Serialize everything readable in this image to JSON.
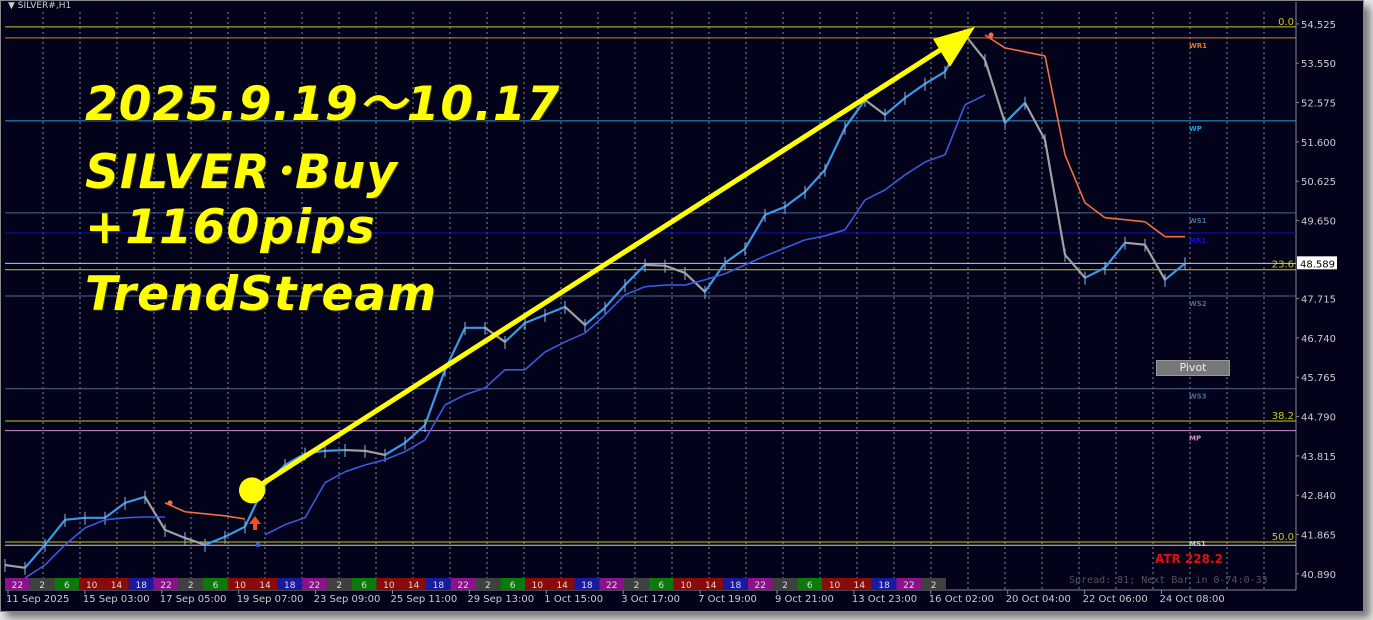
{
  "window": {
    "title": "SILVER#,H1"
  },
  "annotation": {
    "line1": "2025.9.19～10.17",
    "line2": "SILVER･Buy",
    "line3": "+1160pips",
    "line4": "TrendStream",
    "color": "#ffff00"
  },
  "pivot_button": "Pivot",
  "atr_label": "ATR 228.2",
  "spread_text": "Spread: 81; Next Bar in 0-74:0-33",
  "chart_data": {
    "type": "line",
    "ylim": [
      40.49,
      54.82
    ],
    "y_ticks": [
      "54.525",
      "53.550",
      "52.575",
      "51.600",
      "50.625",
      "49.650",
      "48.589",
      "47.715",
      "46.740",
      "45.765",
      "44.790",
      "43.815",
      "42.840",
      "41.865",
      "40.890"
    ],
    "x_ticks": [
      "11 Sep 2025",
      "15 Sep 03:00",
      "17 Sep 05:00",
      "19 Sep 07:00",
      "23 Sep 09:00",
      "25 Sep 11:00",
      "29 Sep 13:00",
      "1 Oct 15:00",
      "3 Oct 17:00",
      "7 Oct 19:00",
      "9 Oct 21:00",
      "13 Oct 23:00",
      "16 Oct 02:00",
      "20 Oct 04:00",
      "22 Oct 06:00",
      "24 Oct 08:00"
    ],
    "grid": true,
    "current_price": "48.589",
    "series": [
      {
        "role": "price",
        "color_up": "#3a9ae8",
        "color_down": "#a0a0a0",
        "values": [
          41.11,
          41.04,
          41.61,
          42.23,
          42.28,
          42.28,
          42.65,
          42.8,
          41.98,
          41.78,
          41.61,
          41.81,
          42.06,
          43.1,
          43.59,
          43.87,
          43.94,
          43.96,
          43.94,
          43.84,
          44.14,
          44.58,
          45.95,
          46.99,
          46.99,
          46.64,
          47.11,
          47.31,
          47.51,
          47.06,
          47.49,
          48.05,
          48.55,
          48.53,
          48.35,
          47.88,
          48.6,
          48.95,
          49.79,
          49.99,
          50.36,
          50.91,
          51.95,
          52.64,
          52.27,
          52.69,
          53.04,
          53.34,
          54.25,
          53.63,
          52.07,
          52.57,
          51.65,
          48.8,
          48.23,
          48.48,
          49.1,
          49.05,
          48.18,
          48.59
        ]
      },
      {
        "role": "support",
        "color": "#3a5ae0",
        "values": [
          null,
          40.79,
          41.11,
          41.61,
          42.03,
          42.23,
          42.28,
          42.3,
          42.3,
          null,
          null,
          null,
          null,
          41.86,
          42.11,
          42.28,
          43.15,
          43.42,
          43.59,
          43.72,
          43.92,
          44.21,
          45.08,
          45.33,
          45.5,
          45.95,
          45.95,
          46.39,
          46.64,
          46.86,
          47.31,
          47.81,
          48.01,
          48.05,
          48.05,
          48.18,
          48.33,
          48.55,
          48.77,
          48.97,
          49.17,
          49.27,
          49.42,
          50.16,
          50.41,
          50.78,
          51.1,
          51.28,
          52.52,
          52.76,
          null,
          null,
          null,
          null,
          null,
          null,
          null,
          null,
          null,
          null
        ]
      },
      {
        "role": "resistance",
        "color": "#f07040",
        "values": [
          null,
          null,
          null,
          null,
          null,
          null,
          null,
          null,
          42.65,
          42.43,
          42.38,
          42.33,
          42.25,
          null,
          null,
          null,
          null,
          null,
          null,
          null,
          null,
          null,
          null,
          null,
          null,
          null,
          null,
          null,
          null,
          null,
          null,
          null,
          null,
          null,
          null,
          null,
          null,
          null,
          null,
          null,
          null,
          null,
          null,
          null,
          null,
          null,
          null,
          null,
          null,
          54.25,
          53.93,
          53.83,
          53.73,
          51.28,
          50.09,
          49.72,
          49.67,
          49.62,
          49.25,
          49.25
        ]
      }
    ],
    "levels": [
      {
        "label": "0.0",
        "price": 54.45,
        "color": "#c8c820",
        "side": "axis"
      },
      {
        "label": "WR1",
        "price": 54.18,
        "color": "#e07a20",
        "side": "tag"
      },
      {
        "label": "WP",
        "price": 52.12,
        "color": "#20a0e0",
        "side": "tag"
      },
      {
        "label": "WS1",
        "price": 49.84,
        "color": "#4a6a90",
        "side": "tag"
      },
      {
        "label": "MR1",
        "price": 49.34,
        "color": "#1010d0",
        "side": "tag"
      },
      {
        "label": "23.6",
        "price": 48.43,
        "color": "#c8c820",
        "side": "axis"
      },
      {
        "label": "WS2",
        "price": 47.78,
        "color": "#4a6a90",
        "side": "tag"
      },
      {
        "label": "WS3",
        "price": 45.48,
        "color": "#4a6a90",
        "side": "tag"
      },
      {
        "label": "38.2",
        "price": 44.68,
        "color": "#c8c820",
        "side": "axis"
      },
      {
        "label": "MP",
        "price": 44.44,
        "color": "#d090d0",
        "side": "tag"
      },
      {
        "label": "50.0",
        "price": 41.68,
        "color": "#c8c820",
        "side": "axis"
      },
      {
        "label": "MS1",
        "price": 41.6,
        "color": "#cccccc",
        "side": "tag"
      }
    ],
    "sessions": {
      "labels": [
        "22",
        "2",
        "6",
        "10",
        "14",
        "18"
      ],
      "colors": [
        "#8a128a",
        "#404040",
        "#0a7a0a",
        "#8b0a0a",
        "#8b0a0a",
        "#1a1aa0"
      ],
      "count": 38
    },
    "trade_arrow": {
      "from_price": 42.96,
      "to_price": 54.45,
      "color": "#ffff00"
    }
  }
}
